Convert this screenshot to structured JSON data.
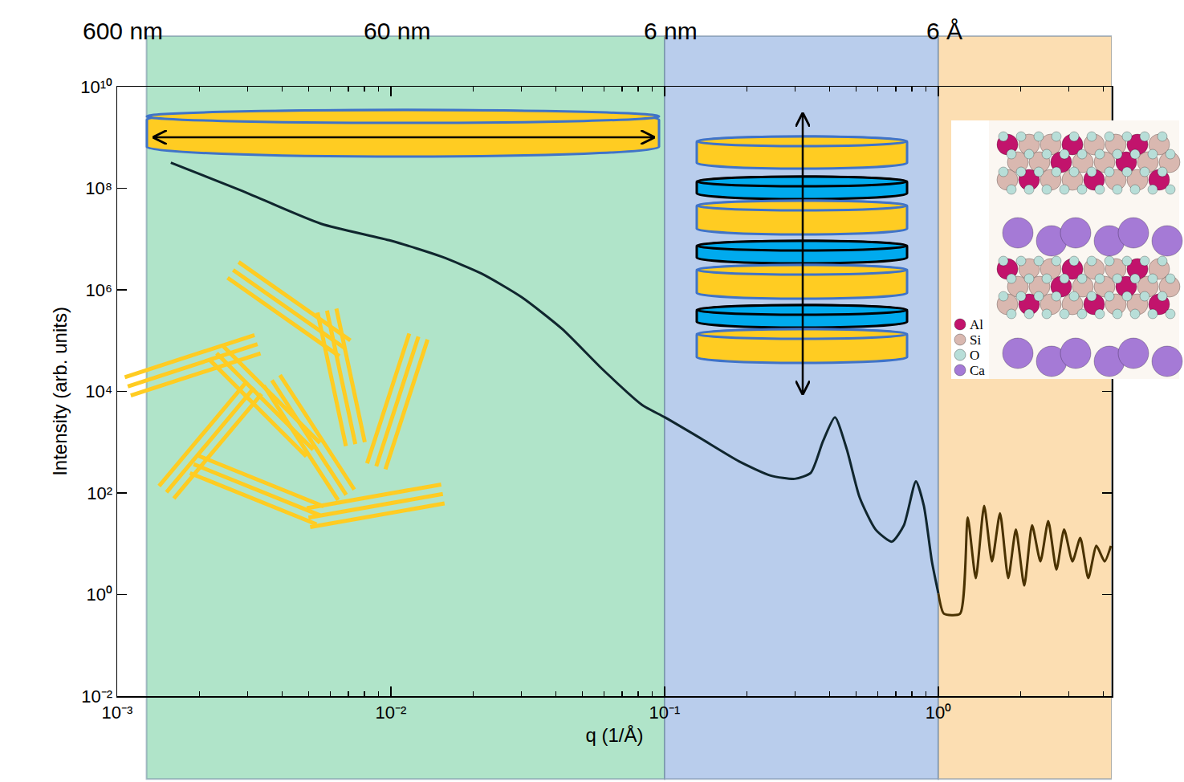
{
  "chart_data": {
    "type": "line",
    "x_label": "q (1/Å)",
    "y_label": "Intensity (arb. units)",
    "log": true,
    "grid": false,
    "xlim": [
      0.001,
      4.3
    ],
    "ylim": [
      0.01,
      10000000000
    ],
    "xticks": [
      {
        "value": 0.001,
        "label": "10⁻³"
      },
      {
        "value": 0.01,
        "label": "10⁻²"
      },
      {
        "value": 0.1,
        "label": "10⁻¹"
      },
      {
        "value": 1,
        "label": "10⁰"
      }
    ],
    "yticks": [
      {
        "value": 0.01,
        "label": "10⁻²"
      },
      {
        "value": 1,
        "label": "10⁰"
      },
      {
        "value": 100,
        "label": "10²"
      },
      {
        "value": 10000,
        "label": "10⁴"
      },
      {
        "value": 1000000,
        "label": "10⁶"
      },
      {
        "value": 100000000,
        "label": "10⁸"
      },
      {
        "value": 10000000000,
        "label": "10¹⁰"
      }
    ],
    "series": [
      {
        "color": "#10262e",
        "x": [
          0.00157,
          0.00283,
          0.00556,
          0.01,
          0.0153,
          0.0214,
          0.03,
          0.0422,
          0.059,
          0.0828,
          0.1,
          0.133,
          0.187,
          0.244,
          0.299,
          0.342,
          0.379,
          0.419,
          0.463,
          0.516,
          0.59,
          0.676,
          0.748,
          0.828,
          0.885,
          0.947,
          1.0
        ],
        "values": [
          320000000,
          91000000,
          20000000,
          9300000,
          4500000,
          2100000,
          720000,
          170000,
          28000,
          5400,
          3100,
          1260,
          420,
          220,
          190,
          250,
          1050,
          3100,
          720,
          81,
          19,
          11,
          23,
          170,
          56,
          4.5,
          1.05
        ]
      },
      {
        "color": "#4a3200",
        "x": [
          1.0,
          1.048,
          1.2,
          1.28,
          1.37,
          1.47,
          1.57,
          1.68,
          1.8,
          1.92,
          2.06,
          2.2,
          2.36,
          2.52,
          2.7,
          2.88,
          3.09,
          3.3,
          3.53,
          3.78,
          4.05,
          4.27
        ],
        "values": [
          1.05,
          0.42,
          0.42,
          33,
          2.1,
          56,
          4.5,
          40,
          2.1,
          19,
          1.5,
          23,
          4.5,
          28,
          3.1,
          19,
          4.5,
          13,
          2.1,
          9.1,
          4.5,
          9.1
        ]
      }
    ],
    "regions": [
      {
        "x0": 0.00128,
        "x1": 0.1,
        "color": "#b0e4c9"
      },
      {
        "x0": 0.1,
        "x1": 1,
        "color": "#b9cdec"
      },
      {
        "x0": 1,
        "x1": 4.3,
        "color": "#fcdeb2"
      }
    ],
    "annotations": [
      {
        "text": "600 nm",
        "x": 0.00105
      },
      {
        "text": "60 nm",
        "x": 0.0105
      },
      {
        "text": "6 nm",
        "x": 0.105
      },
      {
        "text": "6 Å",
        "x": 1.05
      }
    ],
    "inset_legend": [
      {
        "label": "Al",
        "color": "#c2136c"
      },
      {
        "label": "Si",
        "color": "#d9b8b0"
      },
      {
        "label": "O",
        "color": "#b8ded8"
      },
      {
        "label": "Ca",
        "color": "#a57ad6"
      }
    ]
  }
}
